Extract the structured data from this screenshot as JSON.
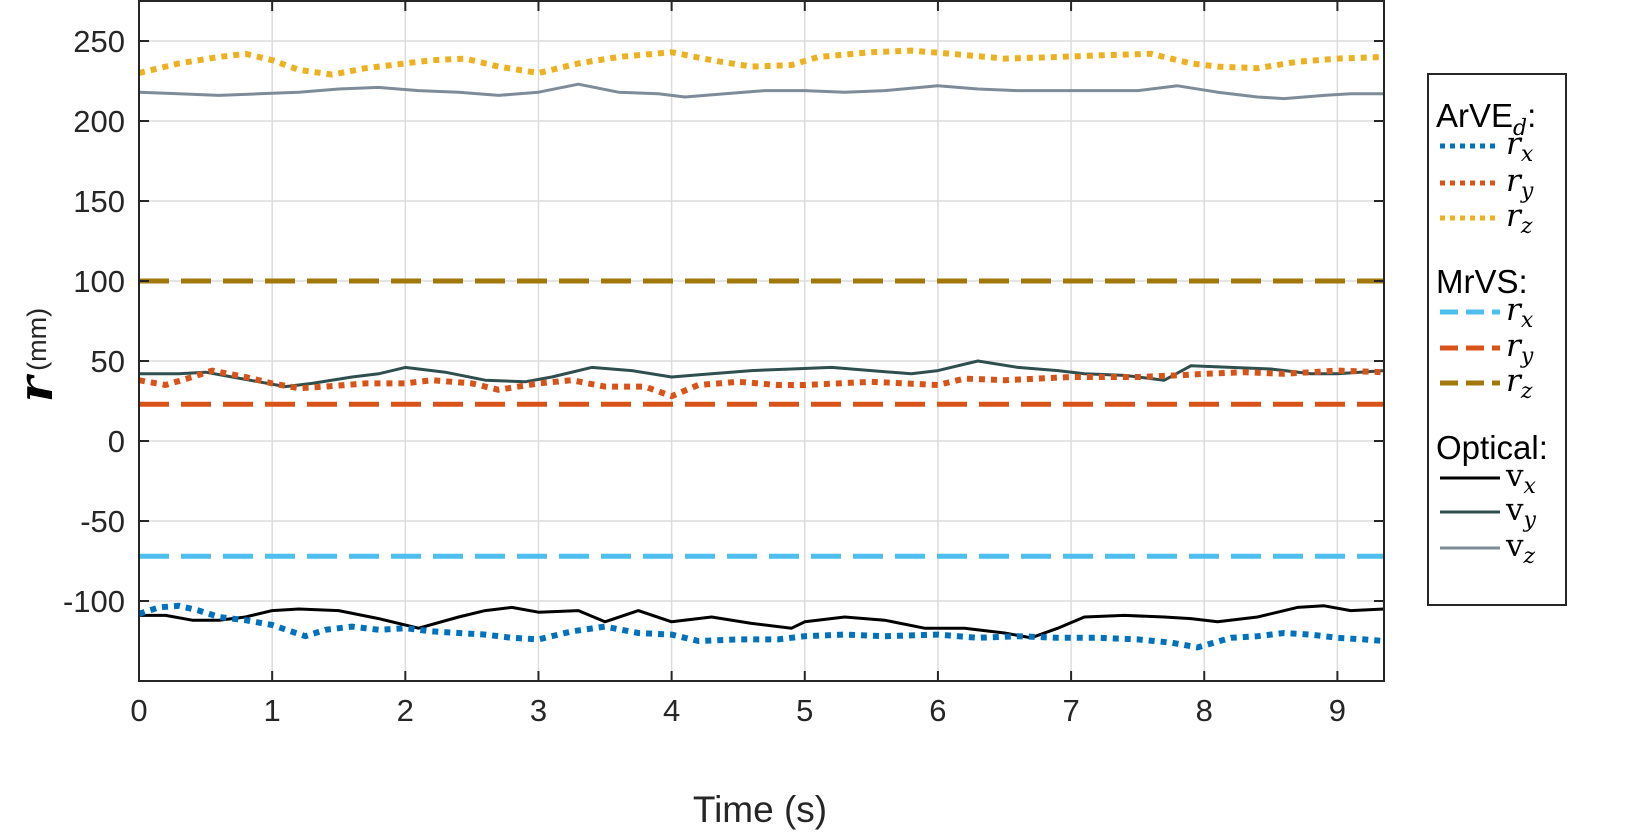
{
  "chart_data": {
    "type": "line",
    "xlabel": "Time (s)",
    "ylabel": "r",
    "ylabel_unit": "(mm)",
    "xlim": [
      0,
      9.35
    ],
    "ylim": [
      -150,
      275
    ],
    "xticks": [
      0,
      1,
      2,
      3,
      4,
      5,
      6,
      7,
      8,
      9
    ],
    "yticks": [
      -100,
      -50,
      0,
      50,
      100,
      150,
      200,
      250
    ],
    "grid": true,
    "legend_position": "outside-right",
    "legend_groups": [
      {
        "title": "ArVE",
        "title_sub": "d",
        "title_suffix": ":",
        "entries": [
          {
            "base": "r",
            "sub": "x",
            "series": "arve_rx"
          },
          {
            "base": "r",
            "sub": "y",
            "series": "arve_ry"
          },
          {
            "base": "r",
            "sub": "z",
            "series": "arve_rz"
          }
        ]
      },
      {
        "title": "MrVS:",
        "entries": [
          {
            "base": "r",
            "sub": "x",
            "series": "mrvs_rx"
          },
          {
            "base": "r",
            "sub": "y",
            "series": "mrvs_ry"
          },
          {
            "base": "r",
            "sub": "z",
            "series": "mrvs_rz"
          }
        ]
      },
      {
        "title": "Optical:",
        "entries": [
          {
            "base": "v",
            "sub": "x",
            "series": "opt_vx",
            "upright": true
          },
          {
            "base": "v",
            "sub": "y",
            "series": "opt_vy",
            "upright": true
          },
          {
            "base": "v",
            "sub": "z",
            "series": "opt_vz",
            "upright": true
          }
        ]
      }
    ],
    "series": [
      {
        "id": "arve_rx",
        "color": "#0072BD",
        "style": "dotted",
        "width": 6,
        "x": [
          0,
          0.15,
          0.3,
          0.45,
          0.6,
          0.8,
          1.0,
          1.25,
          1.4,
          1.6,
          1.8,
          2.0,
          2.2,
          2.4,
          2.6,
          2.8,
          3.0,
          3.25,
          3.5,
          3.75,
          4.0,
          4.2,
          4.5,
          4.8,
          5.0,
          5.3,
          5.6,
          6.0,
          6.3,
          6.6,
          6.9,
          7.2,
          7.5,
          7.75,
          7.95,
          8.2,
          8.4,
          8.6,
          8.8,
          9.0,
          9.2,
          9.35
        ],
        "y": [
          -108,
          -104,
          -103,
          -106,
          -110,
          -112,
          -115,
          -122,
          -118,
          -116,
          -118,
          -117,
          -119,
          -120,
          -121,
          -123,
          -124,
          -119,
          -116,
          -120,
          -121,
          -125,
          -124,
          -124,
          -122,
          -121,
          -122,
          -121,
          -123,
          -122,
          -123,
          -123,
          -124,
          -126,
          -129,
          -123,
          -122,
          -120,
          -121,
          -123,
          -124,
          -125
        ]
      },
      {
        "id": "arve_ry",
        "color": "#D95319",
        "style": "dotted",
        "width": 6,
        "x": [
          0,
          0.2,
          0.4,
          0.55,
          0.8,
          1.0,
          1.2,
          1.4,
          1.7,
          2.0,
          2.2,
          2.5,
          2.7,
          3.0,
          3.25,
          3.5,
          3.8,
          4.0,
          4.2,
          4.5,
          4.8,
          5.0,
          5.5,
          6.0,
          6.2,
          6.5,
          7.0,
          7.5,
          7.8,
          8.0,
          8.3,
          8.6,
          9.0,
          9.35
        ],
        "y": [
          38,
          35,
          40,
          44,
          40,
          36,
          33,
          34,
          36,
          36,
          38,
          36,
          32,
          36,
          38,
          34,
          34,
          28,
          35,
          37,
          35,
          35,
          37,
          35,
          39,
          38,
          40,
          40,
          41,
          42,
          43,
          42,
          44,
          43
        ]
      },
      {
        "id": "arve_rz",
        "color": "#EDB120",
        "style": "dotted",
        "width": 6,
        "x": [
          0,
          0.3,
          0.6,
          0.8,
          1.0,
          1.2,
          1.45,
          1.7,
          2.0,
          2.2,
          2.45,
          2.7,
          3.0,
          3.3,
          3.6,
          4.0,
          4.3,
          4.6,
          4.9,
          5.1,
          5.5,
          5.8,
          6.1,
          6.5,
          6.9,
          7.2,
          7.6,
          7.9,
          8.1,
          8.4,
          8.7,
          9.0,
          9.35
        ],
        "y": [
          230,
          236,
          240,
          242,
          238,
          232,
          229,
          233,
          236,
          238,
          239,
          234,
          230,
          236,
          240,
          243,
          238,
          234,
          235,
          240,
          243,
          244,
          242,
          239,
          240,
          241,
          242,
          236,
          234,
          233,
          237,
          239,
          240
        ]
      },
      {
        "id": "mrvs_rx",
        "color": "#4DBEEE",
        "style": "dashed",
        "width": 5,
        "x": [
          0,
          9.35
        ],
        "y": [
          -72,
          -72
        ]
      },
      {
        "id": "mrvs_ry",
        "color": "#D95319",
        "style": "dashed",
        "width": 5,
        "x": [
          0,
          9.35
        ],
        "y": [
          23,
          23
        ]
      },
      {
        "id": "mrvs_rz",
        "color": "#A2780C",
        "style": "dashed",
        "width": 5,
        "x": [
          0,
          9.35
        ],
        "y": [
          100,
          100
        ]
      },
      {
        "id": "opt_vx",
        "color": "#000000",
        "style": "solid",
        "width": 3,
        "x": [
          0,
          0.2,
          0.4,
          0.6,
          0.8,
          1.0,
          1.2,
          1.5,
          1.8,
          2.1,
          2.4,
          2.6,
          2.8,
          3.0,
          3.3,
          3.5,
          3.75,
          4.0,
          4.3,
          4.6,
          4.9,
          5.0,
          5.3,
          5.6,
          5.9,
          6.2,
          6.5,
          6.7,
          6.9,
          7.1,
          7.4,
          7.7,
          7.9,
          8.1,
          8.4,
          8.7,
          8.9,
          9.1,
          9.35
        ],
        "y": [
          -109,
          -109,
          -112,
          -112,
          -110,
          -106,
          -105,
          -106,
          -111,
          -117,
          -110,
          -106,
          -104,
          -107,
          -106,
          -113,
          -106,
          -113,
          -110,
          -114,
          -117,
          -113,
          -110,
          -112,
          -117,
          -117,
          -120,
          -123,
          -117,
          -110,
          -109,
          -110,
          -111,
          -113,
          -110,
          -104,
          -103,
          -106,
          -105
        ]
      },
      {
        "id": "opt_vy",
        "color": "#2F4F4F",
        "style": "solid",
        "width": 3,
        "x": [
          0,
          0.3,
          0.5,
          0.7,
          0.9,
          1.1,
          1.3,
          1.6,
          1.8,
          2.0,
          2.3,
          2.6,
          2.9,
          3.1,
          3.4,
          3.7,
          4.0,
          4.3,
          4.6,
          4.9,
          5.2,
          5.5,
          5.8,
          6.0,
          6.3,
          6.6,
          6.9,
          7.1,
          7.4,
          7.7,
          7.9,
          8.2,
          8.5,
          8.8,
          9.0,
          9.35
        ],
        "y": [
          42,
          42,
          43,
          40,
          37,
          34,
          36,
          40,
          42,
          46,
          43,
          38,
          37,
          40,
          46,
          44,
          40,
          42,
          44,
          45,
          46,
          44,
          42,
          44,
          50,
          46,
          44,
          42,
          41,
          38,
          47,
          46,
          45,
          42,
          42,
          44
        ]
      },
      {
        "id": "opt_vz",
        "color": "#7E8C99",
        "style": "solid",
        "width": 3,
        "x": [
          0,
          0.3,
          0.6,
          0.9,
          1.2,
          1.5,
          1.8,
          2.1,
          2.4,
          2.7,
          3.0,
          3.3,
          3.6,
          3.9,
          4.1,
          4.4,
          4.7,
          5.0,
          5.3,
          5.6,
          6.0,
          6.3,
          6.6,
          6.9,
          7.2,
          7.5,
          7.8,
          8.1,
          8.4,
          8.6,
          8.9,
          9.1,
          9.35
        ],
        "y": [
          218,
          217,
          216,
          217,
          218,
          220,
          221,
          219,
          218,
          216,
          218,
          223,
          218,
          217,
          215,
          217,
          219,
          219,
          218,
          219,
          222,
          220,
          219,
          219,
          219,
          219,
          222,
          218,
          215,
          214,
          216,
          217,
          217
        ]
      }
    ]
  }
}
